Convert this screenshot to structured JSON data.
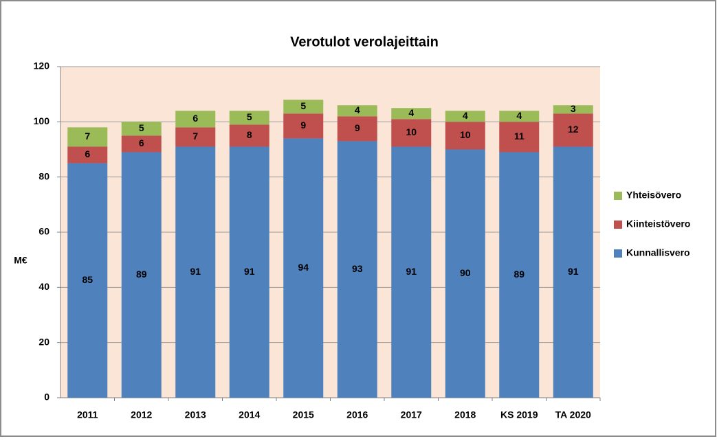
{
  "chart_data": {
    "type": "stacked_bar",
    "title": "Verotulot verolajeittain",
    "y_label": "M€",
    "categories": [
      "2011",
      "2012",
      "2013",
      "2014",
      "2015",
      "2016",
      "2017",
      "2018",
      "KS 2019",
      "TA 2020"
    ],
    "series": [
      {
        "name": "Kunnallisvero",
        "color": "#4f81bd",
        "values": [
          85,
          89,
          91,
          91,
          94,
          93,
          91,
          90,
          89,
          91
        ]
      },
      {
        "name": "Kiinteistövero",
        "color": "#c0504d",
        "values": [
          6,
          6,
          7,
          8,
          9,
          9,
          10,
          10,
          11,
          12
        ]
      },
      {
        "name": "Yhteisövero",
        "color": "#9bbb59",
        "values": [
          7,
          5,
          6,
          5,
          5,
          4,
          4,
          4,
          4,
          3
        ]
      }
    ],
    "ylim": [
      0,
      120
    ],
    "yticks": [
      0,
      20,
      40,
      60,
      80,
      100,
      120
    ],
    "grid": true,
    "legend": "right"
  }
}
